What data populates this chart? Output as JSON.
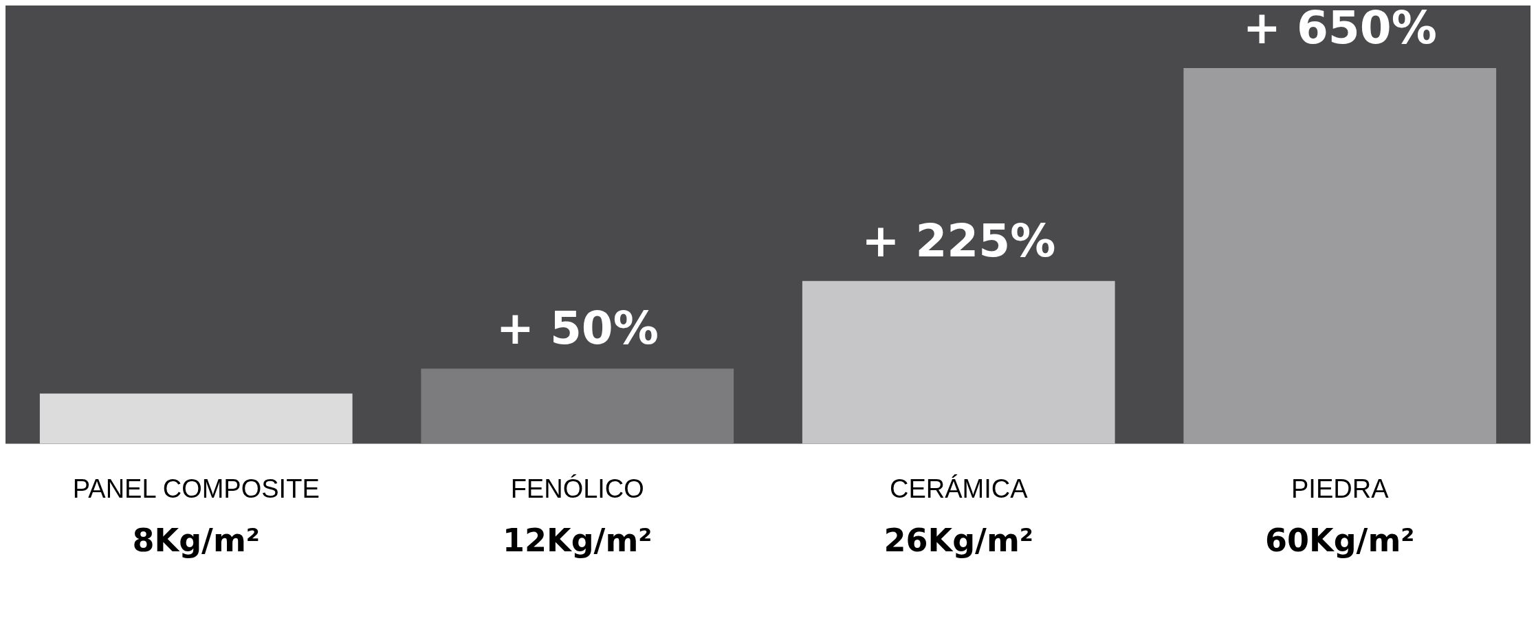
{
  "chart_data": {
    "type": "bar",
    "categories": [
      "PANEL COMPOSITE",
      "FENÓLICO",
      "CERÁMICA",
      "PIEDRA"
    ],
    "values": [
      8,
      12,
      26,
      60
    ],
    "colors": [
      "#dcdcdd",
      "#7c7c7e",
      "#c6c6c8",
      "#9c9c9e"
    ],
    "value_labels": [
      "8Kg/m²",
      "12Kg/m²",
      "26Kg/m²",
      "60Kg/m²"
    ],
    "annotations": [
      {
        "text": "+ 50%",
        "x": "FENÓLICO",
        "y": 12
      },
      {
        "text": "+ 225%",
        "x": "CERÁMICA",
        "y": 26
      },
      {
        "text": "+ 650%",
        "x": "PIEDRA",
        "y": 60
      }
    ],
    "ylim": [
      0,
      70
    ],
    "tick_labels": "x",
    "grid": false,
    "legend": false
  }
}
